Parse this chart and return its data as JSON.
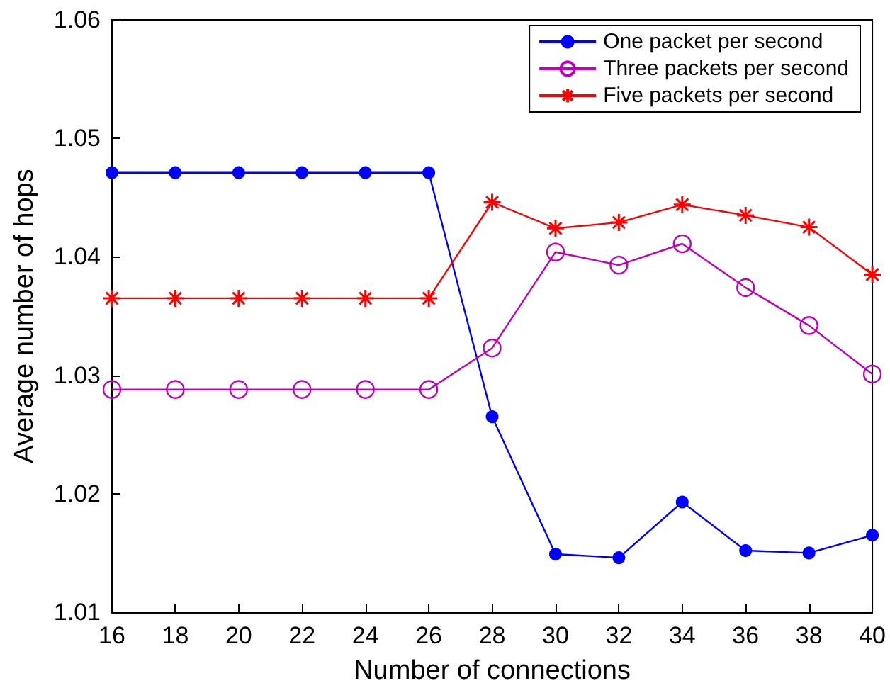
{
  "chart_data": {
    "type": "line",
    "xlabel": "Number of connections",
    "ylabel": "Average number of hops",
    "x": [
      16,
      18,
      20,
      22,
      24,
      26,
      28,
      30,
      32,
      34,
      36,
      38,
      40
    ],
    "series": [
      {
        "name": "One packet per second",
        "color": "#0000ff",
        "marker": "circle",
        "values": [
          1.0471,
          1.0471,
          1.0471,
          1.0471,
          1.0471,
          1.0471,
          1.0265,
          1.0149,
          1.0146,
          1.0193,
          1.0152,
          1.015,
          1.0165
        ]
      },
      {
        "name": "Three packets per second",
        "color": "#bf00bf",
        "marker": "circle",
        "values": [
          1.0288,
          1.0288,
          1.0288,
          1.0288,
          1.0288,
          1.0288,
          1.0323,
          1.0404,
          1.0393,
          1.0411,
          1.0374,
          1.0342,
          1.0301
        ]
      },
      {
        "name": "Five packets per second",
        "color": "#ff0000",
        "marker": "cross",
        "values": [
          1.0365,
          1.0365,
          1.0365,
          1.0365,
          1.0365,
          1.0365,
          1.0446,
          1.0424,
          1.0429,
          1.0444,
          1.0435,
          1.0425,
          1.0385
        ]
      }
    ],
    "xlim": [
      16,
      40
    ],
    "xticks": [
      16,
      18,
      20,
      22,
      24,
      26,
      28,
      30,
      32,
      34,
      36,
      38,
      40
    ],
    "ylim": [
      1.01,
      1.06
    ],
    "yticks": [
      1.01,
      1.02,
      1.03,
      1.04,
      1.05,
      1.06
    ],
    "grid": false,
    "legend": "top right",
    "line_style": "solid"
  }
}
